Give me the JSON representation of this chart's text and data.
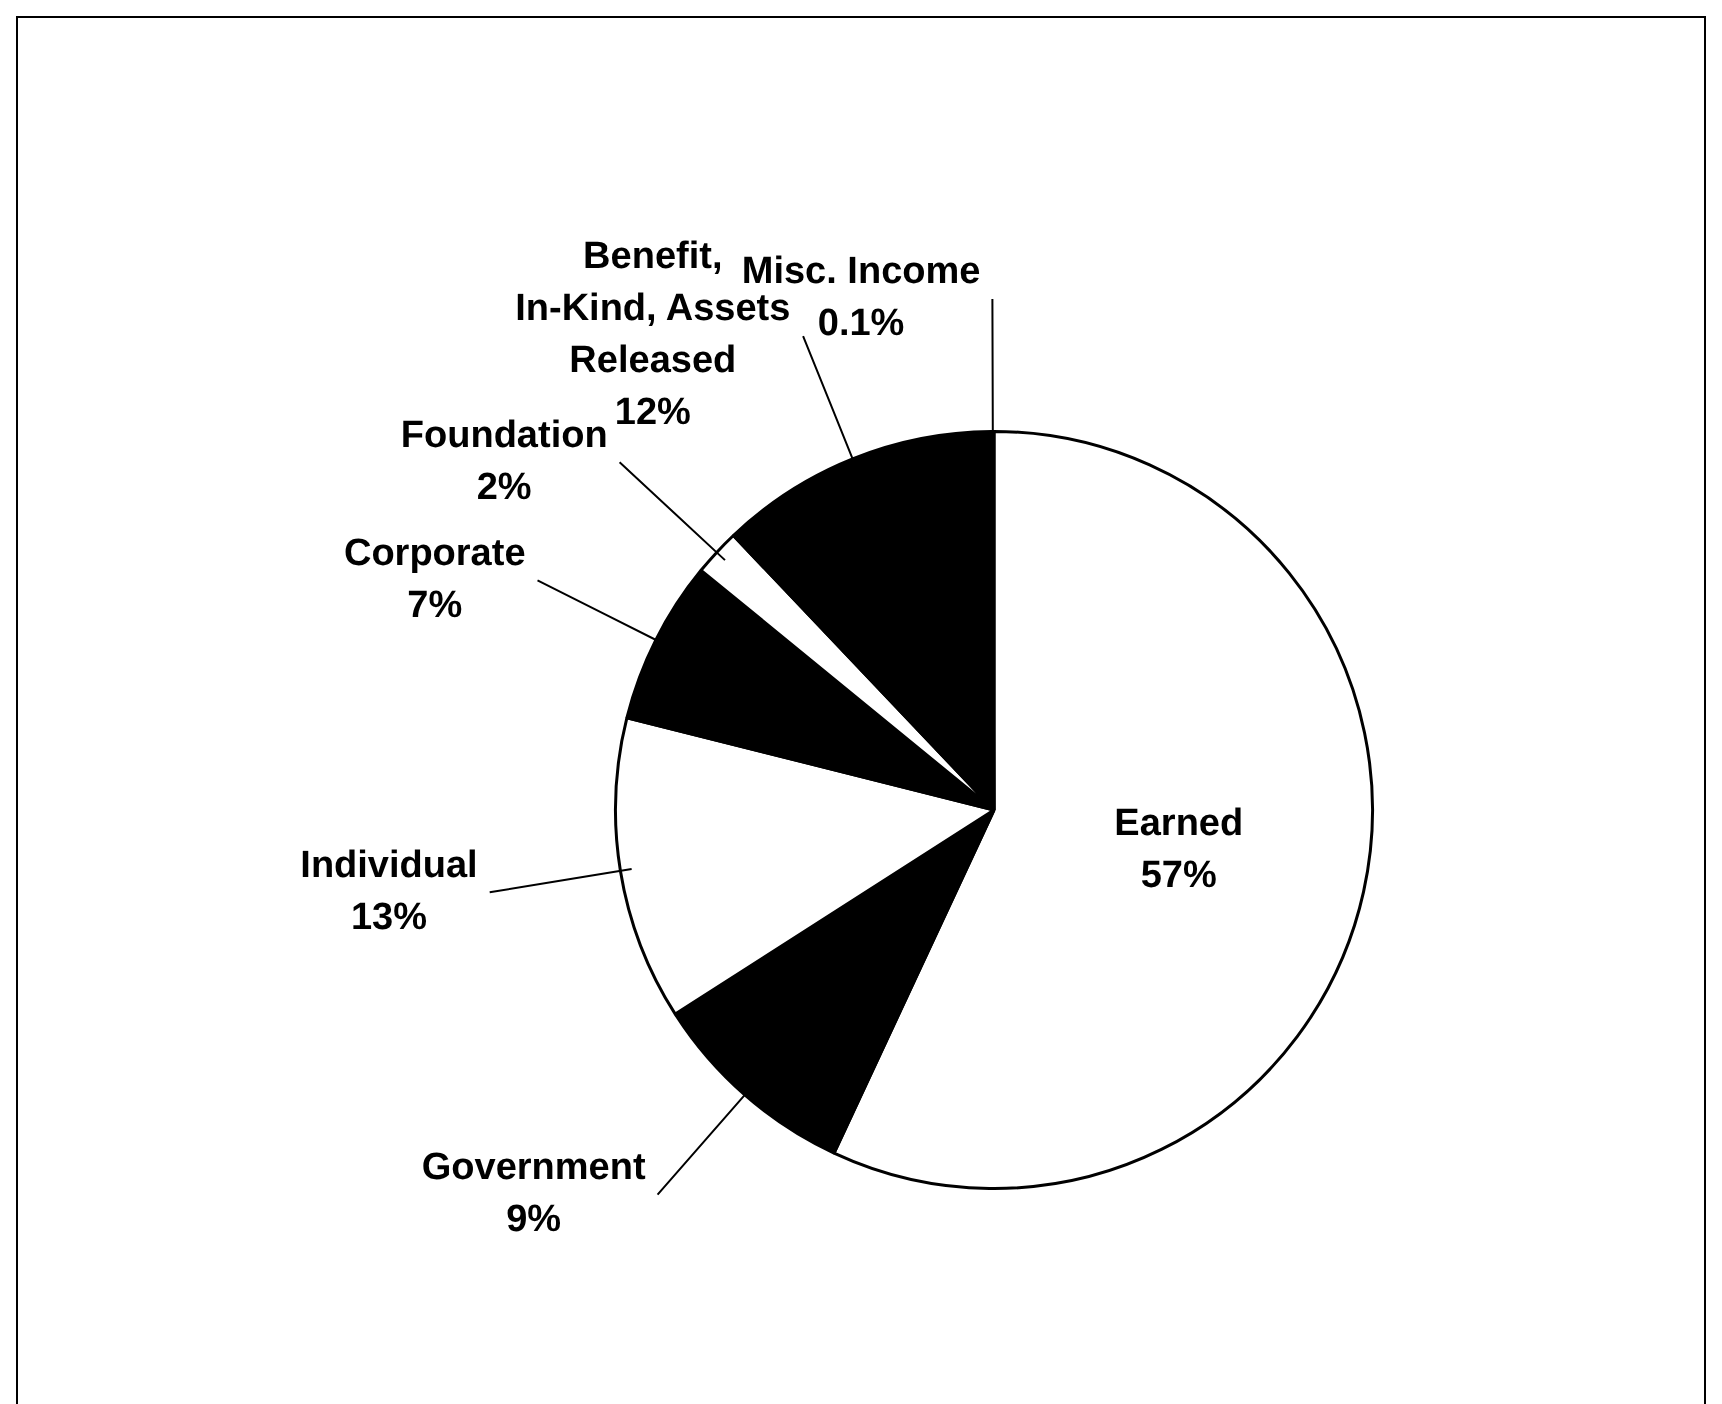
{
  "chart_data": {
    "type": "pie",
    "categories": [
      "Earned",
      "Government",
      "Individual",
      "Corporate",
      "Foundation",
      "Benefit, In-Kind, Assets Released",
      "Misc. Income"
    ],
    "values": [
      57,
      9,
      13,
      7,
      2,
      12,
      0.1
    ],
    "value_labels": [
      "57%",
      "9%",
      "13%",
      "7%",
      "2%",
      "12%",
      "0.1%"
    ],
    "colors": [
      "#ffffff",
      "#000000",
      "#ffffff",
      "#000000",
      "#ffffff",
      "#000000",
      "#ffffff"
    ],
    "legend": false
  }
}
